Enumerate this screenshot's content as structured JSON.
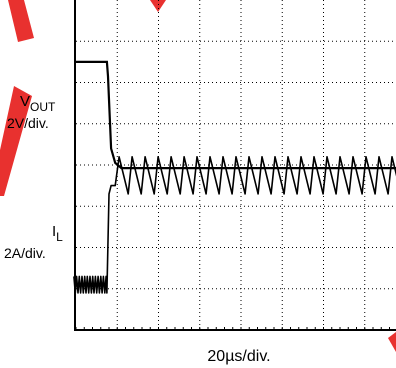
{
  "chart_data": {
    "type": "line",
    "title": "",
    "grid": true,
    "x_scale_label": "20µs/div.",
    "x_divisions": 8,
    "y_divisions": 8,
    "series": [
      {
        "name_main": "V",
        "name_sub": "OUT",
        "scale_label": "2V/div.",
        "unit": "V",
        "baseline_div": 3.9,
        "volts_per_div": 2,
        "points": [
          [
            0,
            5.2
          ],
          [
            15,
            5.2
          ],
          [
            15.5,
            4.5
          ],
          [
            17,
            1.0
          ],
          [
            19,
            0.3
          ],
          [
            22,
            0.05
          ],
          [
            160,
            0.05
          ]
        ]
      },
      {
        "name_main": "I",
        "name_sub": "L",
        "scale_label": "2A/div.",
        "unit": "A",
        "baseline_div": 0.3,
        "amps_per_div": 2,
        "steady_before": {
          "t_end_us": 15.0,
          "low": 1.2,
          "high": 2.0,
          "ripple_period_us": 1.3
        },
        "step": {
          "t_start_us": 15.0,
          "t_end_us": 19.0,
          "level": 6.4
        },
        "steady_after": {
          "t_start_us": 19.0,
          "t_end_us": 160.0,
          "low": 6.0,
          "high": 7.8,
          "ripple_period_us": 6.3
        }
      }
    ]
  },
  "colors": {
    "trace": "#000000",
    "grid": "#000000",
    "border": "#000000",
    "mark": "#e8312f"
  }
}
